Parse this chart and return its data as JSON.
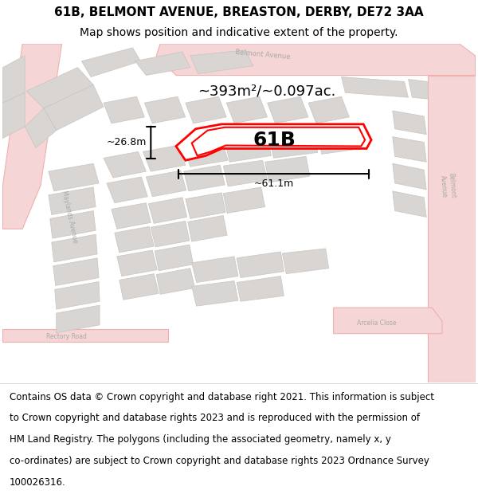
{
  "title_line1": "61B, BELMONT AVENUE, BREASTON, DERBY, DE72 3AA",
  "title_line2": "Map shows position and indicative extent of the property.",
  "footer_lines": [
    "Contains OS data © Crown copyright and database right 2021. This information is subject",
    "to Crown copyright and database rights 2023 and is reproduced with the permission of",
    "HM Land Registry. The polygons (including the associated geometry, namely x, y",
    "co-ordinates) are subject to Crown copyright and database rights 2023 Ordnance Survey",
    "100026316."
  ],
  "area_text": "~393m²/~0.097ac.",
  "width_text": "~61.1m",
  "height_text": "~26.8m",
  "label_61B": "61B",
  "map_bg": "#edeae7",
  "road_fill": "#f5d5d5",
  "road_edge": "#f0b0b0",
  "block_fill": "#d8d5d2",
  "block_edge": "#c8c4c0",
  "highlight_color": "#ff0000",
  "text_color": "#000000",
  "label_color": "#aaaaaa",
  "title_fontsize": 11,
  "subtitle_fontsize": 10,
  "footer_fontsize": 8.5,
  "area_fontsize": 13,
  "dim_fontsize": 9,
  "label_fontsize": 18
}
